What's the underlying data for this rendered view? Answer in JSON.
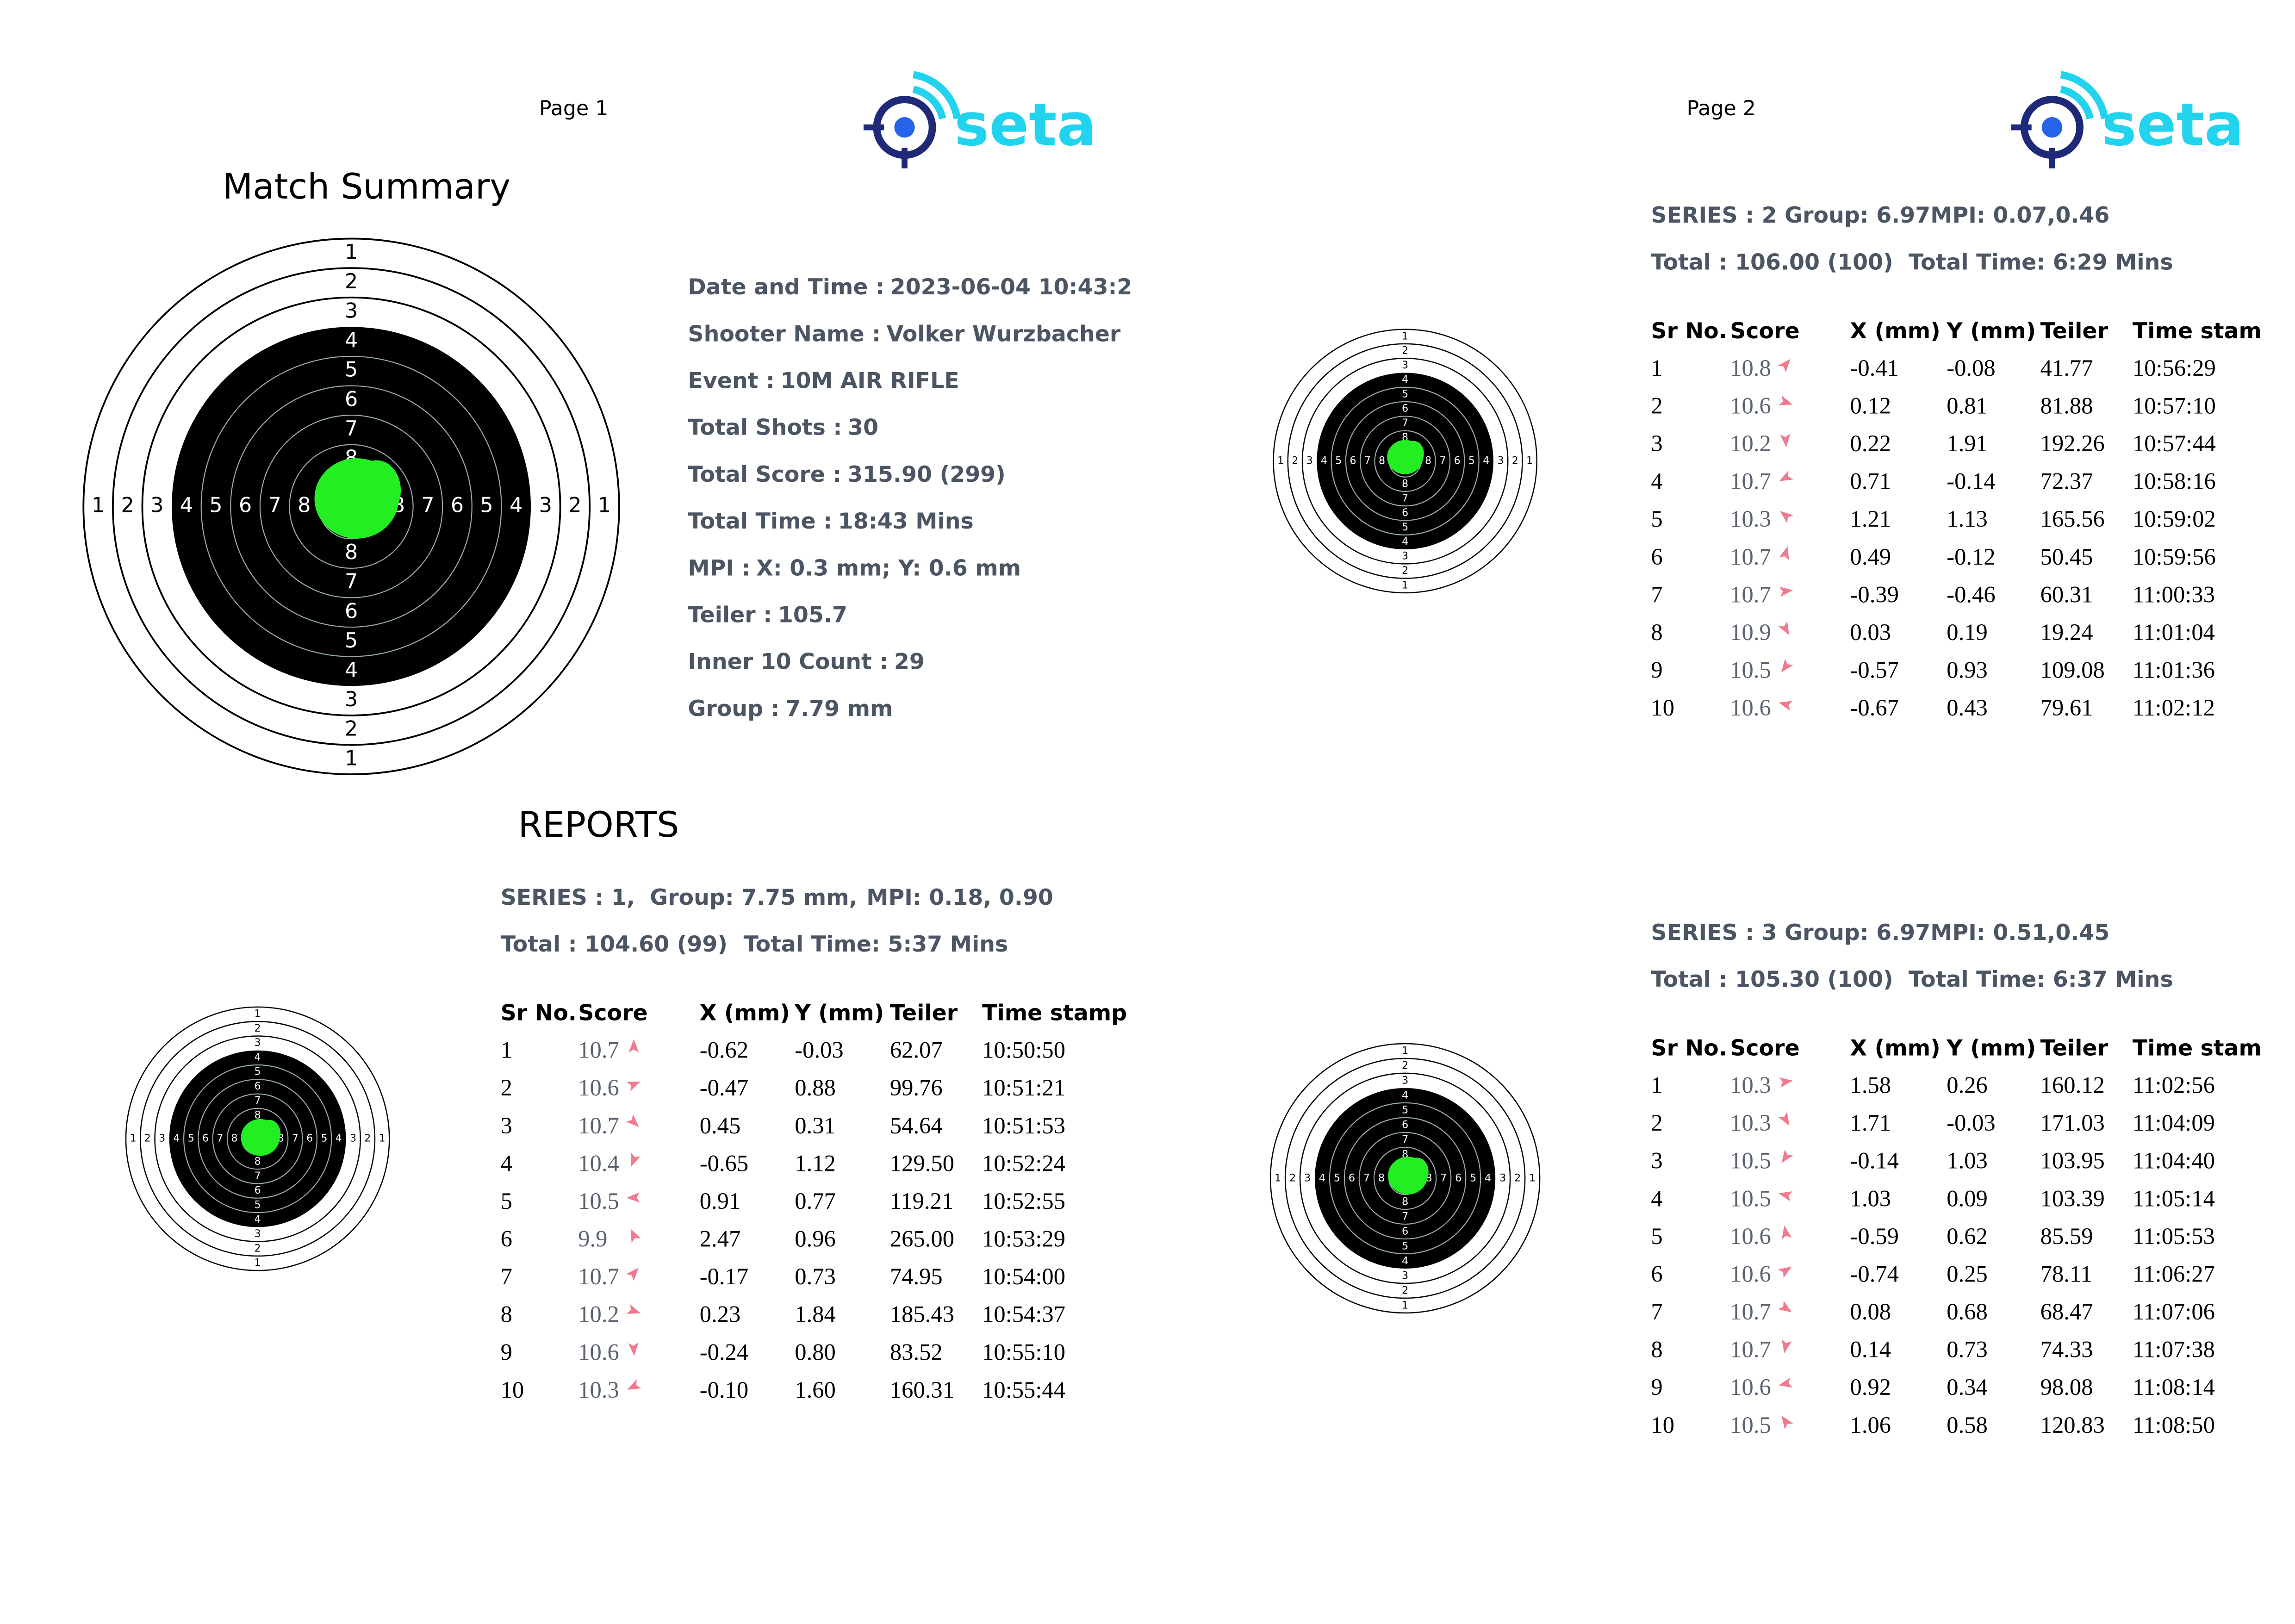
{
  "pages": [
    {
      "label": "Page 1",
      "logo": "seta"
    },
    {
      "label": "Page 2",
      "logo": "seta"
    }
  ],
  "ring_labels": [
    "1",
    "2",
    "3",
    "4",
    "5",
    "6",
    "7",
    "8"
  ],
  "match_summary": {
    "title": "Match Summary",
    "fields": [
      {
        "label": "Date and Time :",
        "value": "2023-06-04 10:43:2"
      },
      {
        "label": "Shooter Name :",
        "value": "Volker Wurzbacher"
      },
      {
        "label": "Event :",
        "value": "10M AIR RIFLE"
      },
      {
        "label": "Total Shots :",
        "value": "30"
      },
      {
        "label": "Total Score :",
        "value": "315.90 (299)"
      },
      {
        "label": "Total Time :",
        "value": "18:43 Mins"
      },
      {
        "label": "MPI :",
        "value": "X: 0.3 mm; Y: 0.6 mm"
      },
      {
        "label": "Teiler :",
        "value": "105.7"
      },
      {
        "label": "Inner 10 Count :",
        "value": "29"
      },
      {
        "label": "Group :",
        "value": "7.79 mm"
      }
    ]
  },
  "reports_title": "REPORTS",
  "series": [
    {
      "lines": [
        [
          "SERIES : 1,",
          "Group: 7.75 mm,",
          "MPI: 0.18, 0.90"
        ],
        [
          "Total : 104.60 (99)",
          "Total Time: 5:37 Mins"
        ]
      ],
      "headers": [
        "Sr No.",
        "Score",
        "X (mm)",
        "Y (mm)",
        "Teiler",
        "Time stamp"
      ],
      "rows": [
        [
          "1",
          "10.7",
          "-0.62",
          "-0.03",
          "62.07",
          "10:50:50"
        ],
        [
          "2",
          "10.6",
          "-0.47",
          "0.88",
          "99.76",
          "10:51:21"
        ],
        [
          "3",
          "10.7",
          "0.45",
          "0.31",
          "54.64",
          "10:51:53"
        ],
        [
          "4",
          "10.4",
          "-0.65",
          "1.12",
          "129.50",
          "10:52:24"
        ],
        [
          "5",
          "10.5",
          "0.91",
          "0.77",
          "119.21",
          "10:52:55"
        ],
        [
          "6",
          "9.9",
          "2.47",
          "0.96",
          "265.00",
          "10:53:29"
        ],
        [
          "7",
          "10.7",
          "-0.17",
          "0.73",
          "74.95",
          "10:54:00"
        ],
        [
          "8",
          "10.2",
          "0.23",
          "1.84",
          "185.43",
          "10:54:37"
        ],
        [
          "9",
          "10.6",
          "-0.24",
          "0.80",
          "83.52",
          "10:55:10"
        ],
        [
          "10",
          "10.3",
          "-0.10",
          "1.60",
          "160.31",
          "10:55:44"
        ]
      ]
    },
    {
      "lines": [
        [
          "SERIES : 2 Group: 6.97MPI: 0.07,0.46"
        ],
        [
          "Total : 106.00 (100)",
          "Total Time: 6:29 Mins"
        ]
      ],
      "headers": [
        "Sr No.",
        "Score",
        "X (mm)",
        "Y (mm)",
        "Teiler",
        "Time stam"
      ],
      "rows": [
        [
          "1",
          "10.8",
          "-0.41",
          "-0.08",
          "41.77",
          "10:56:29"
        ],
        [
          "2",
          "10.6",
          "0.12",
          "0.81",
          "81.88",
          "10:57:10"
        ],
        [
          "3",
          "10.2",
          "0.22",
          "1.91",
          "192.26",
          "10:57:44"
        ],
        [
          "4",
          "10.7",
          "0.71",
          "-0.14",
          "72.37",
          "10:58:16"
        ],
        [
          "5",
          "10.3",
          "1.21",
          "1.13",
          "165.56",
          "10:59:02"
        ],
        [
          "6",
          "10.7",
          "0.49",
          "-0.12",
          "50.45",
          "10:59:56"
        ],
        [
          "7",
          "10.7",
          "-0.39",
          "-0.46",
          "60.31",
          "11:00:33"
        ],
        [
          "8",
          "10.9",
          "0.03",
          "0.19",
          "19.24",
          "11:01:04"
        ],
        [
          "9",
          "10.5",
          "-0.57",
          "0.93",
          "109.08",
          "11:01:36"
        ],
        [
          "10",
          "10.6",
          "-0.67",
          "0.43",
          "79.61",
          "11:02:12"
        ]
      ]
    },
    {
      "lines": [
        [
          "SERIES : 3 Group: 6.97MPI: 0.51,0.45"
        ],
        [
          "Total : 105.30 (100)",
          "Total Time: 6:37 Mins"
        ]
      ],
      "headers": [
        "Sr No.",
        "Score",
        "X (mm)",
        "Y (mm)",
        "Teiler",
        "Time stam"
      ],
      "rows": [
        [
          "1",
          "10.3",
          "1.58",
          "0.26",
          "160.12",
          "11:02:56"
        ],
        [
          "2",
          "10.3",
          "1.71",
          "-0.03",
          "171.03",
          "11:04:09"
        ],
        [
          "3",
          "10.5",
          "-0.14",
          "1.03",
          "103.95",
          "11:04:40"
        ],
        [
          "4",
          "10.5",
          "1.03",
          "0.09",
          "103.39",
          "11:05:14"
        ],
        [
          "5",
          "10.6",
          "-0.59",
          "0.62",
          "85.59",
          "11:05:53"
        ],
        [
          "6",
          "10.6",
          "-0.74",
          "0.25",
          "78.11",
          "11:06:27"
        ],
        [
          "7",
          "10.7",
          "0.08",
          "0.68",
          "68.47",
          "11:07:06"
        ],
        [
          "8",
          "10.7",
          "0.14",
          "0.73",
          "74.33",
          "11:07:38"
        ],
        [
          "9",
          "10.6",
          "0.92",
          "0.34",
          "98.08",
          "11:08:14"
        ],
        [
          "10",
          "10.5",
          "1.06",
          "0.58",
          "120.83",
          "11:08:50"
        ]
      ]
    }
  ]
}
